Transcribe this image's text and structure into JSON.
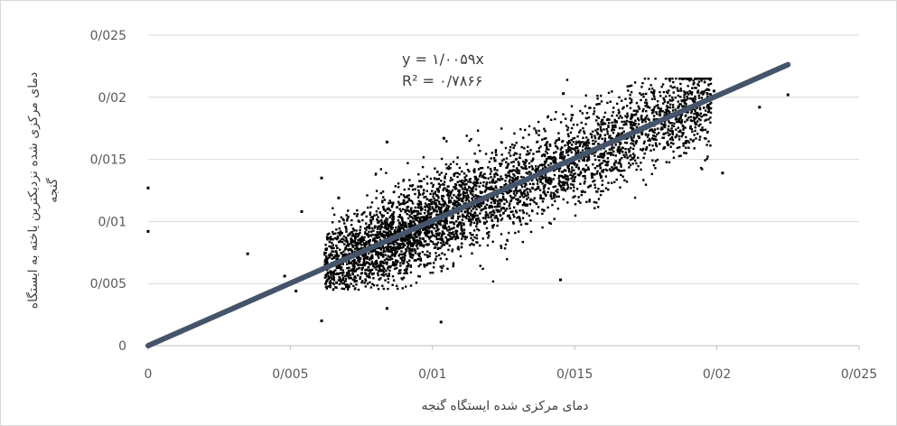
{
  "chart_data": {
    "type": "scatter",
    "title": "",
    "xlabel": "دمای مرکزی شده ایستگاه گنجه",
    "ylabel_line1": "دمای مرکزی شده نزدیکترین یاخته به ایستگاه",
    "ylabel_line2": "گنجه",
    "xlim": [
      0,
      0.025
    ],
    "ylim": [
      0,
      0.025
    ],
    "xticks": [
      "0",
      "0/005",
      "0/01",
      "0/015",
      "0/02",
      "0/025"
    ],
    "yticks": [
      "0",
      "0/005",
      "0/01",
      "0/015",
      "0/02",
      "0/025"
    ],
    "grid": true,
    "trendline": {
      "slope": 1.0059,
      "x_range": [
        0,
        0.0225
      ],
      "equation": "y = ۱/۰۰۵۹x",
      "r_squared_label": "R² = ۰/۷۸۶۶",
      "color": "#44546a"
    },
    "point_color": "#000000",
    "cloud": {
      "description_points": "main cloud centred along the trend line",
      "x_min": 0.0062,
      "x_max": 0.0198,
      "center_slope": 1.0,
      "spread_y": 0.0018,
      "count": 4500
    },
    "outliers": [
      {
        "x": 0.0,
        "y": 0.0127
      },
      {
        "x": 0.0,
        "y": 0.0092
      },
      {
        "x": 0.0035,
        "y": 0.0074
      },
      {
        "x": 0.0048,
        "y": 0.0056
      },
      {
        "x": 0.0052,
        "y": 0.0044
      },
      {
        "x": 0.0054,
        "y": 0.0108
      },
      {
        "x": 0.0061,
        "y": 0.0135
      },
      {
        "x": 0.0061,
        "y": 0.002
      },
      {
        "x": 0.0067,
        "y": 0.0119
      },
      {
        "x": 0.0084,
        "y": 0.0164
      },
      {
        "x": 0.0084,
        "y": 0.003
      },
      {
        "x": 0.0104,
        "y": 0.0167
      },
      {
        "x": 0.0103,
        "y": 0.0019
      },
      {
        "x": 0.0122,
        "y": 0.0149
      },
      {
        "x": 0.0145,
        "y": 0.0053
      },
      {
        "x": 0.0146,
        "y": 0.0203
      },
      {
        "x": 0.0202,
        "y": 0.0139
      },
      {
        "x": 0.0215,
        "y": 0.0192
      },
      {
        "x": 0.0225,
        "y": 0.0202
      },
      {
        "x": 0.0199,
        "y": 0.0205
      }
    ]
  }
}
